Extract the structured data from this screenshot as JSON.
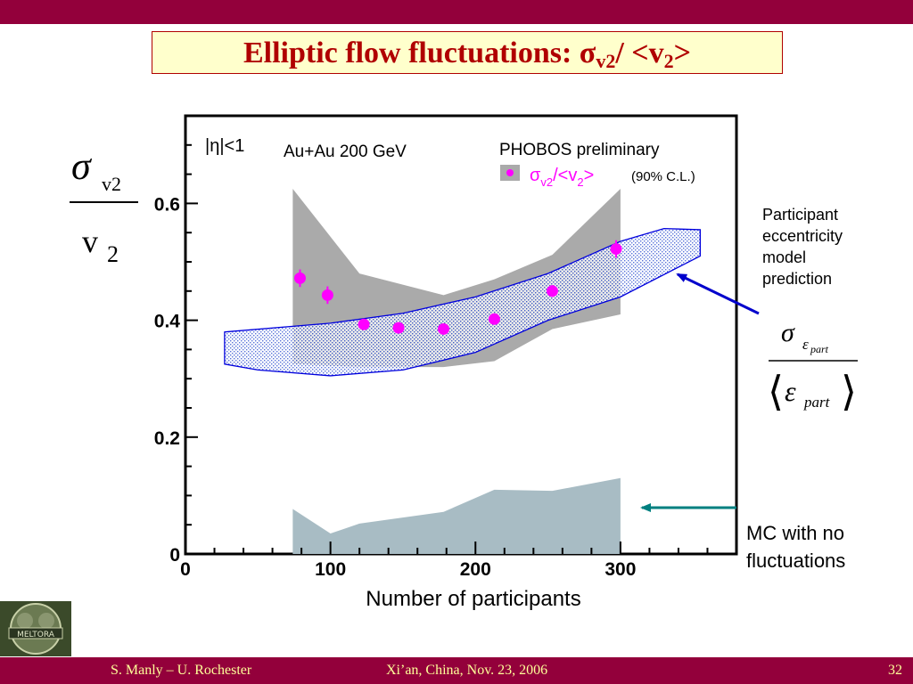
{
  "slide": {
    "title_main": "Elliptic flow fluctuations: σ",
    "title_sub1": "v2",
    "title_mid": "/ <v",
    "title_sub2": "2",
    "title_end": ">"
  },
  "footer": {
    "author": "S. Manly – U. Rochester",
    "venue": "Xi’an, China, Nov. 23, 2006",
    "page": "32"
  },
  "logo": {
    "text": "MELTORA"
  },
  "annotations": {
    "eccentricity_note": [
      "Participant",
      "eccentricity",
      "model",
      "prediction"
    ],
    "mc_note": [
      "MC with no",
      "fluctuations"
    ],
    "eccentricity_formula": {
      "sigma": "σ",
      "epsilon": "ε",
      "sub": "part",
      "open": "⟨",
      "close": "⟩"
    }
  },
  "colors": {
    "bar": "#93003b",
    "title_text": "#b00000",
    "title_box": "#ffffcc",
    "footer_text": "#ffff99",
    "data_points": "#ff00ff",
    "error_band": "#aaaaaa",
    "model_band_border": "#0000dd",
    "mc_band": "#a8bcc4",
    "blue_arrow": "#0000cc",
    "teal_arrow": "#008080"
  },
  "chart_data": {
    "type": "scatter",
    "title": "",
    "xlabel": "Number of participants",
    "ylabel_numerator": {
      "symbol": "σ",
      "sub": "v2"
    },
    "ylabel_denominator": {
      "symbol": "v",
      "sub": "2"
    },
    "xlim": [
      0,
      380
    ],
    "ylim": [
      0,
      0.75
    ],
    "xticks": [
      0,
      100,
      200,
      300
    ],
    "xtick_labels": [
      "0",
      "100",
      "200",
      "300"
    ],
    "yticks": [
      0,
      0.2,
      0.4,
      0.6
    ],
    "ytick_labels": [
      "0",
      "0.2",
      "0.4",
      "0.6"
    ],
    "grid": false,
    "texts": {
      "eta_cut": "|η|<1",
      "system": "Au+Au 200 GeV",
      "experiment": "PHOBOS preliminary",
      "legend_sigma": "σ",
      "legend_sub": "v2",
      "legend_rest": "/<v",
      "legend_sub2": "2",
      "legend_close": ">",
      "legend_cl": "(90% C.L.)"
    },
    "legend_placement": "top-right",
    "series": [
      {
        "name": "σv2/<v2>",
        "role": "data",
        "points": [
          {
            "x": 79,
            "y": 0.472,
            "yerr": 0.015
          },
          {
            "x": 98,
            "y": 0.443,
            "yerr": 0.015
          },
          {
            "x": 123,
            "y": 0.393,
            "yerr": 0.007
          },
          {
            "x": 147,
            "y": 0.387,
            "yerr": 0.007
          },
          {
            "x": 178,
            "y": 0.385,
            "yerr": 0.007
          },
          {
            "x": 213,
            "y": 0.402,
            "yerr": 0.007
          },
          {
            "x": 253,
            "y": 0.45,
            "yerr": 0.01
          },
          {
            "x": 297,
            "y": 0.522,
            "yerr": 0.015
          }
        ],
        "band_90cl": {
          "x": [
            74,
            120,
            178,
            213,
            253,
            300
          ],
          "upper": [
            0.625,
            0.48,
            0.443,
            0.47,
            0.512,
            0.625
          ],
          "lower": [
            0.325,
            0.32,
            0.32,
            0.33,
            0.385,
            0.41
          ]
        }
      },
      {
        "name": "Participant eccentricity model prediction",
        "role": "model_band",
        "upper": [
          [
            27,
            0.38
          ],
          [
            100,
            0.395
          ],
          [
            150,
            0.412
          ],
          [
            200,
            0.44
          ],
          [
            250,
            0.48
          ],
          [
            300,
            0.535
          ],
          [
            330,
            0.557
          ],
          [
            355,
            0.555
          ]
        ],
        "lower": [
          [
            355,
            0.51
          ],
          [
            300,
            0.44
          ],
          [
            250,
            0.4
          ],
          [
            200,
            0.345
          ],
          [
            150,
            0.315
          ],
          [
            100,
            0.305
          ],
          [
            50,
            0.315
          ],
          [
            27,
            0.325
          ]
        ]
      },
      {
        "name": "MC with no fluctuations",
        "role": "mc_band",
        "upper": [
          [
            74,
            0.077
          ],
          [
            100,
            0.035
          ],
          [
            120,
            0.052
          ],
          [
            178,
            0.072
          ],
          [
            213,
            0.11
          ],
          [
            253,
            0.108
          ],
          [
            300,
            0.13
          ]
        ]
      }
    ]
  }
}
